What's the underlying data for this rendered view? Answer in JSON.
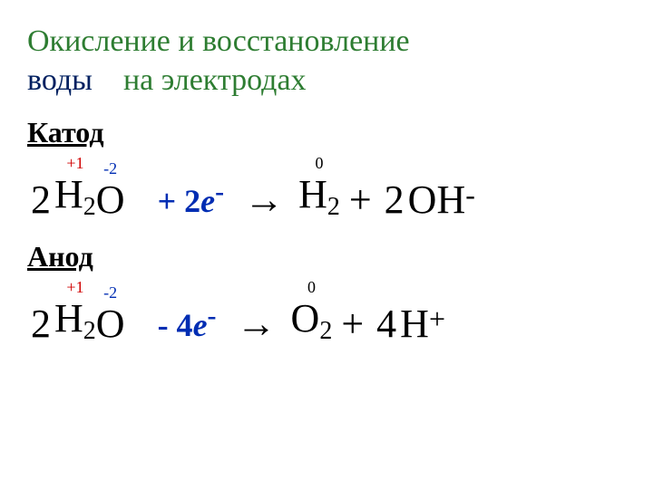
{
  "title": {
    "part1": "Окисление и восстановление",
    "word_water": "воды",
    "part2": "на электродах"
  },
  "colors": {
    "title_green": "#2e7d32",
    "title_navy": "#002060",
    "ox_red": "#d00000",
    "ox_blue": "#002db3",
    "etrans_blue": "#002db3",
    "text_black": "#000000",
    "background": "#ffffff"
  },
  "fontsizes": {
    "title": 34,
    "section": 32,
    "equation": 44,
    "oxidation": 18,
    "subscript": 28,
    "superscript": 32,
    "electron_transfer": 36
  },
  "cathode": {
    "heading": "Катод",
    "lhs_coef": "2",
    "lhs_H": "H",
    "lhs_H_sub": "2",
    "lhs_O": "O",
    "ox_H": "+1",
    "ox_O": "-2",
    "etrans": "+ 2",
    "etrans_e": "е",
    "etrans_sup": "-",
    "arrow": "→",
    "prod1_ox": "0",
    "prod1_sym": "H",
    "prod1_sub": "2",
    "plus": "+",
    "prod2_coef": "2",
    "prod2_sym1": "O",
    "prod2_sym2": "H",
    "prod2_sup": "-"
  },
  "anode": {
    "heading": "Анод",
    "lhs_coef": "2",
    "lhs_H": "H",
    "lhs_H_sub": "2",
    "lhs_O": "O",
    "ox_H": "+1",
    "ox_O": "-2",
    "etrans": "- 4",
    "etrans_e": "е",
    "etrans_sup": "-",
    "arrow": "→",
    "prod1_ox": "0",
    "prod1_sym": "O",
    "prod1_sub": "2",
    "plus": "+",
    "prod2_coef": "4",
    "prod2_sym": "H",
    "prod2_sup": "+"
  }
}
